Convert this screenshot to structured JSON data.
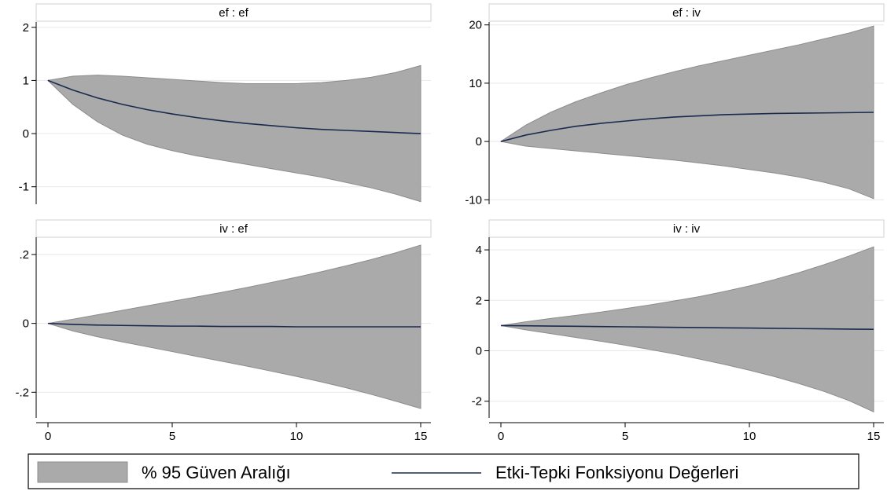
{
  "legend": {
    "band_label": "% 95 Güven Aralığı",
    "line_label": "Etki-Tepki Fonksiyonu Değerleri"
  },
  "colors": {
    "band_fill": "#aaaaaa",
    "band_edge": "#8c8c8c",
    "line": "#1a2a4f",
    "grid": "#e8e8e8",
    "title_bg": "#ffffff"
  },
  "chart_data": [
    {
      "type": "area",
      "title": "ef : ef",
      "x": [
        0,
        1,
        2,
        3,
        4,
        5,
        6,
        7,
        8,
        9,
        10,
        11,
        12,
        13,
        14,
        15
      ],
      "xticks": [
        0,
        5,
        10,
        15
      ],
      "xlim": [
        0,
        15
      ],
      "ylim": [
        -1.3,
        2.1
      ],
      "yticks": [
        2,
        1,
        0,
        -1
      ],
      "ytick_labels": [
        "2",
        "1",
        "0",
        "-1"
      ],
      "series": [
        {
          "role": "ci_upper",
          "values": [
            1,
            1.08,
            1.1,
            1.08,
            1.05,
            1.02,
            0.99,
            0.96,
            0.94,
            0.94,
            0.94,
            0.96,
            1.0,
            1.06,
            1.15,
            1.28
          ]
        },
        {
          "role": "ci_lower",
          "values": [
            1,
            0.55,
            0.22,
            -0.03,
            -0.2,
            -0.32,
            -0.42,
            -0.5,
            -0.58,
            -0.66,
            -0.74,
            -0.82,
            -0.92,
            -1.02,
            -1.14,
            -1.28
          ]
        },
        {
          "role": "irf",
          "values": [
            1,
            0.82,
            0.67,
            0.55,
            0.45,
            0.37,
            0.3,
            0.24,
            0.19,
            0.15,
            0.11,
            0.08,
            0.06,
            0.04,
            0.02,
            0.0
          ]
        }
      ],
      "grid": true
    },
    {
      "type": "area",
      "title": "ef : iv",
      "x": [
        0,
        1,
        2,
        3,
        4,
        5,
        6,
        7,
        8,
        9,
        10,
        11,
        12,
        13,
        14,
        15
      ],
      "xticks": [
        0,
        5,
        10,
        15
      ],
      "xlim": [
        0,
        15
      ],
      "ylim": [
        -10.5,
        20.5
      ],
      "yticks": [
        20,
        10,
        0,
        -10
      ],
      "ytick_labels": [
        "20",
        "10",
        "0",
        "-10"
      ],
      "series": [
        {
          "role": "ci_upper",
          "values": [
            0,
            2.8,
            5.0,
            6.8,
            8.3,
            9.7,
            10.9,
            12.0,
            13.0,
            13.9,
            14.8,
            15.7,
            16.6,
            17.6,
            18.6,
            19.8
          ]
        },
        {
          "role": "ci_lower",
          "values": [
            0,
            -0.8,
            -1.2,
            -1.6,
            -2.0,
            -2.4,
            -2.8,
            -3.2,
            -3.7,
            -4.2,
            -4.8,
            -5.4,
            -6.1,
            -7.0,
            -8.1,
            -9.8
          ]
        },
        {
          "role": "irf",
          "values": [
            0,
            1.1,
            1.9,
            2.6,
            3.1,
            3.5,
            3.9,
            4.2,
            4.4,
            4.6,
            4.7,
            4.8,
            4.85,
            4.9,
            4.95,
            5.0
          ]
        }
      ],
      "grid": true
    },
    {
      "type": "area",
      "title": "iv : ef",
      "x": [
        0,
        1,
        2,
        3,
        4,
        5,
        6,
        7,
        8,
        9,
        10,
        11,
        12,
        13,
        14,
        15
      ],
      "xticks": [
        0,
        5,
        10,
        15
      ],
      "xlim": [
        0,
        15
      ],
      "ylim": [
        -0.27,
        0.25
      ],
      "yticks": [
        0.2,
        0,
        -0.2
      ],
      "ytick_labels": [
        ".2",
        "0",
        "-.2"
      ],
      "series": [
        {
          "role": "ci_upper",
          "values": [
            0,
            0.012,
            0.025,
            0.038,
            0.051,
            0.064,
            0.077,
            0.09,
            0.104,
            0.119,
            0.134,
            0.15,
            0.167,
            0.185,
            0.205,
            0.227
          ]
        },
        {
          "role": "ci_lower",
          "values": [
            0,
            -0.022,
            -0.039,
            -0.054,
            -0.068,
            -0.082,
            -0.096,
            -0.11,
            -0.124,
            -0.139,
            -0.154,
            -0.17,
            -0.187,
            -0.206,
            -0.226,
            -0.247
          ]
        },
        {
          "role": "irf",
          "values": [
            0,
            -0.003,
            -0.005,
            -0.006,
            -0.007,
            -0.008,
            -0.008,
            -0.009,
            -0.009,
            -0.009,
            -0.01,
            -0.01,
            -0.01,
            -0.01,
            -0.01,
            -0.01
          ]
        }
      ],
      "grid": true
    },
    {
      "type": "area",
      "title": "iv : iv",
      "x": [
        0,
        1,
        2,
        3,
        4,
        5,
        6,
        7,
        8,
        9,
        10,
        11,
        12,
        13,
        14,
        15
      ],
      "xticks": [
        0,
        5,
        10,
        15
      ],
      "xlim": [
        0,
        15
      ],
      "ylim": [
        -2.6,
        4.5
      ],
      "yticks": [
        4,
        2,
        0,
        -2
      ],
      "ytick_labels": [
        "4",
        "2",
        "0",
        "-2"
      ],
      "series": [
        {
          "role": "ci_upper",
          "values": [
            1,
            1.15,
            1.28,
            1.4,
            1.53,
            1.67,
            1.82,
            1.98,
            2.15,
            2.35,
            2.57,
            2.82,
            3.1,
            3.41,
            3.75,
            4.12
          ]
        },
        {
          "role": "ci_lower",
          "values": [
            1,
            0.83,
            0.68,
            0.53,
            0.38,
            0.22,
            0.05,
            -0.13,
            -0.33,
            -0.54,
            -0.77,
            -1.02,
            -1.3,
            -1.61,
            -1.97,
            -2.42
          ]
        },
        {
          "role": "irf",
          "values": [
            1,
            0.99,
            0.98,
            0.97,
            0.96,
            0.95,
            0.94,
            0.93,
            0.92,
            0.91,
            0.9,
            0.89,
            0.88,
            0.87,
            0.86,
            0.85
          ]
        }
      ],
      "grid": true
    }
  ]
}
